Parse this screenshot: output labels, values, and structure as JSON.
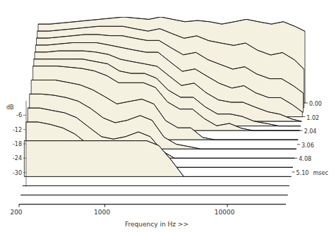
{
  "chart_data": {
    "type": "waterfall",
    "xlabel": "Frequency in Hz >>",
    "ylabel": "dB",
    "zlabel": "msec",
    "log": "x",
    "color": "#f4f1e1",
    "x": [
      200,
      250,
      315,
      400,
      500,
      630,
      800,
      1000,
      1250,
      1600,
      2000,
      2500,
      3150,
      4000,
      5000,
      6300,
      8000,
      10000,
      12500,
      16000,
      20000,
      25000,
      30000
    ],
    "xlim": [
      200,
      30000
    ],
    "xticks": [
      200,
      1000,
      10000
    ],
    "ylim": [
      -36,
      0
    ],
    "yticks": [
      -6,
      -12,
      -18,
      -24,
      -30
    ],
    "zlim": [
      0,
      7.48
    ],
    "zticks": [
      {
        "value": 0,
        "label": "0.00"
      },
      1.02,
      2.04,
      3.06,
      4.08,
      {
        "value": 5.1,
        "label": "5.10"
      }
    ],
    "series": [
      {
        "time": 0,
        "values": [
          -3,
          -3,
          -2.5,
          -2,
          -1.5,
          -1,
          -0.5,
          0,
          -0.5,
          -1,
          0,
          -1,
          -2,
          -1.5,
          -2,
          -3,
          -2,
          -1,
          -2,
          -3,
          -2,
          -4,
          -6
        ]
      },
      {
        "time": 0.34,
        "values": [
          -4,
          -4,
          -3.5,
          -3,
          -2.5,
          -2,
          -2,
          -2,
          -3,
          -4,
          -3,
          -5,
          -7,
          -6,
          -8,
          -9,
          -10,
          -9,
          -12,
          -14,
          -13,
          -16,
          -20
        ]
      },
      {
        "time": 0.68,
        "values": [
          -5,
          -5,
          -4.5,
          -4,
          -3.5,
          -3.5,
          -4,
          -4,
          -5,
          -6,
          -6,
          -9,
          -12,
          -11,
          -14,
          -16,
          -18,
          -17,
          -20,
          -22,
          -22,
          -25,
          -28
        ]
      },
      {
        "time": 1.02,
        "values": [
          -6,
          -6,
          -5.5,
          -5,
          -5,
          -5,
          -6,
          -7,
          -8,
          -9,
          -9,
          -13,
          -17,
          -16,
          -19,
          -22,
          -24,
          -23,
          -26,
          -28,
          -28,
          -31,
          -34
        ]
      },
      {
        "time": 1.36,
        "values": [
          -7,
          -7,
          -6.5,
          -6.5,
          -6.5,
          -7,
          -8,
          -10,
          -11,
          -12,
          -13,
          -17,
          -21,
          -20,
          -24,
          -27,
          -28,
          -28,
          -30,
          -32,
          -33,
          -35,
          -36
        ]
      },
      {
        "time": 1.7,
        "values": [
          -8,
          -8,
          -8,
          -8,
          -8,
          -9,
          -10,
          -13,
          -14,
          -14,
          -16,
          -21,
          -24,
          -24,
          -28,
          -31,
          -31,
          -32,
          -34,
          -35,
          -36,
          -36,
          -36
        ]
      },
      {
        "time": 2.04,
        "values": [
          -9,
          -9,
          -9,
          -9.5,
          -10,
          -11,
          -13,
          -16,
          -16,
          -16,
          -18,
          -24,
          -27,
          -27,
          -31,
          -34,
          -33,
          -35,
          -36,
          -36,
          -36,
          -36,
          -36
        ]
      },
      {
        "time": 2.72,
        "values": [
          -11,
          -11,
          -11,
          -12,
          -13,
          -15,
          -18,
          -21,
          -20,
          -19,
          -21,
          -28,
          -31,
          -31,
          -35,
          -36,
          -36,
          -36,
          -36,
          -36,
          -36,
          -36,
          -36
        ]
      },
      {
        "time": 3.4,
        "values": [
          -13,
          -13,
          -13.5,
          -14.5,
          -16,
          -19,
          -23,
          -25,
          -24,
          -22,
          -24,
          -31,
          -34,
          -35,
          -36,
          -36,
          -36,
          -36,
          -36,
          -36,
          -36,
          -36,
          -36
        ]
      },
      {
        "time": 4.08,
        "values": [
          -15,
          -15,
          -16,
          -17,
          -19,
          -23,
          -27,
          -28,
          -27,
          -25,
          -27,
          -33,
          -36,
          -36,
          -36,
          -36,
          -36,
          -36,
          -36,
          -36,
          -36,
          -36,
          -36
        ]
      },
      {
        "time": 4.76,
        "values": [
          -17,
          -17,
          -18,
          -19.5,
          -22,
          -26,
          -30,
          -31,
          -30,
          -28,
          -30,
          -35,
          -36,
          -36,
          -36,
          -36,
          -36,
          -36,
          -36,
          -36,
          -36,
          -36,
          -36
        ]
      },
      {
        "time": 5.44,
        "values": [
          -21,
          -21,
          -21,
          -21,
          -21,
          -21,
          -21,
          -21,
          -21,
          -21,
          -21,
          -23,
          -29,
          -36,
          -36,
          -36,
          -36,
          -36,
          -36,
          -36,
          -36,
          -36,
          -36
        ]
      },
      {
        "time": 6.12,
        "values": [
          -36,
          -36,
          -36,
          -36,
          -36,
          -36,
          -36,
          -36,
          -36,
          -36,
          -36,
          -36,
          -36,
          -36,
          -36,
          -36,
          -36,
          -36,
          -36,
          -36,
          -36,
          -36,
          -36
        ]
      },
      {
        "time": 6.8,
        "values": [
          -36,
          -36,
          -36,
          -36,
          -36,
          -36,
          -36,
          -36,
          -36,
          -36,
          -36,
          -36,
          -36,
          -36,
          -36,
          -36,
          -36,
          -36,
          -36,
          -36,
          -36,
          -36,
          -36
        ]
      },
      {
        "time": 7.48,
        "values": [
          -36,
          -36,
          -36,
          -36,
          -36,
          -36,
          -36,
          -36,
          -36,
          -36,
          -36,
          -36,
          -36,
          -36,
          -36,
          -36,
          -36,
          -36,
          -36,
          -36,
          -36,
          -36,
          -36
        ]
      }
    ]
  }
}
